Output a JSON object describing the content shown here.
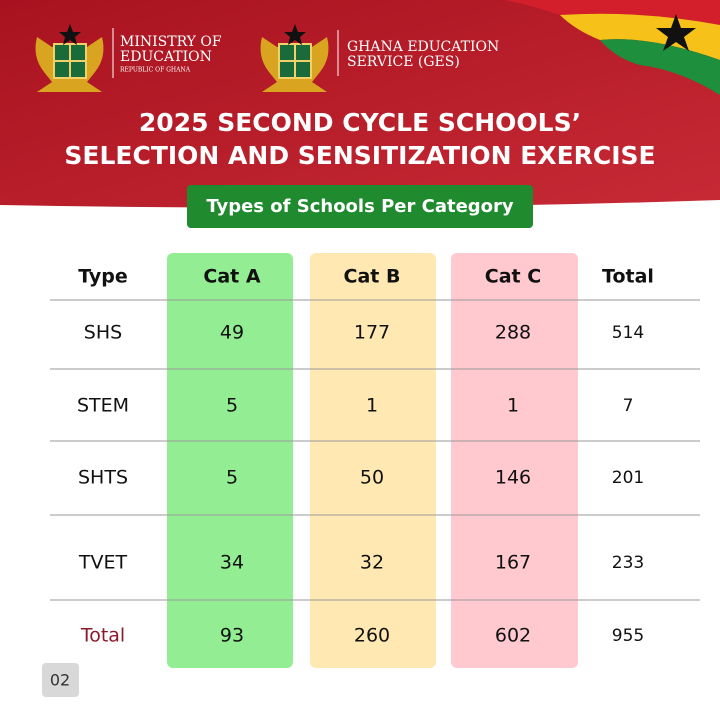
{
  "header": {
    "logos": [
      {
        "lines": [
          "MINISTRY OF",
          "EDUCATION"
        ],
        "sub": "REPUBLIC OF GHANA"
      },
      {
        "lines": [
          "GHANA EDUCATION",
          "SERVICE (GES)"
        ]
      }
    ],
    "title": [
      "2025 SECOND CYCLE SCHOOLS’",
      "SELECTION AND SENSITIZATION EXERCISE"
    ],
    "subtitle": "Types of Schools Per Category"
  },
  "table": {
    "columns": [
      "Type",
      "Cat A",
      "Cat B",
      "Cat C",
      "Total"
    ],
    "rows": [
      [
        "SHS",
        49,
        177,
        288,
        514
      ],
      [
        "STEM",
        5,
        1,
        1,
        7
      ],
      [
        "SHTS",
        5,
        50,
        146,
        201
      ],
      [
        "TVET",
        34,
        32,
        167,
        233
      ],
      [
        "Total",
        93,
        260,
        602,
        955
      ]
    ]
  },
  "page_number": "02"
}
